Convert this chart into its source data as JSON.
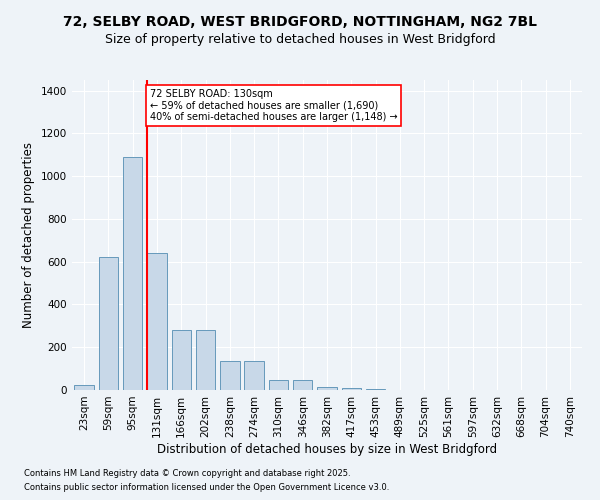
{
  "title_line1": "72, SELBY ROAD, WEST BRIDGFORD, NOTTINGHAM, NG2 7BL",
  "title_line2": "Size of property relative to detached houses in West Bridgford",
  "xlabel": "Distribution of detached houses by size in West Bridgford",
  "ylabel": "Number of detached properties",
  "bin_labels": [
    "23sqm",
    "59sqm",
    "95sqm",
    "131sqm",
    "166sqm",
    "202sqm",
    "238sqm",
    "274sqm",
    "310sqm",
    "346sqm",
    "382sqm",
    "417sqm",
    "453sqm",
    "489sqm",
    "525sqm",
    "561sqm",
    "597sqm",
    "632sqm",
    "668sqm",
    "704sqm",
    "740sqm"
  ],
  "bar_values": [
    25,
    620,
    1090,
    640,
    280,
    280,
    135,
    135,
    45,
    45,
    15,
    10,
    3,
    1,
    0,
    0,
    0,
    0,
    0,
    0,
    0
  ],
  "bar_color": "#c8d8e8",
  "bar_edgecolor": "#6699bb",
  "vline_x_index": 3,
  "vline_color": "red",
  "annotation_text": "72 SELBY ROAD: 130sqm\n← 59% of detached houses are smaller (1,690)\n40% of semi-detached houses are larger (1,148) →",
  "annotation_box_color": "white",
  "annotation_box_edgecolor": "red",
  "ylim": [
    0,
    1450
  ],
  "yticks": [
    0,
    200,
    400,
    600,
    800,
    1000,
    1200,
    1400
  ],
  "footnote1": "Contains HM Land Registry data © Crown copyright and database right 2025.",
  "footnote2": "Contains public sector information licensed under the Open Government Licence v3.0.",
  "background_color": "#eef3f8",
  "plot_background_color": "#eef3f8",
  "grid_color": "white",
  "title_fontsize": 10,
  "subtitle_fontsize": 9,
  "xlabel_fontsize": 8.5,
  "ylabel_fontsize": 8.5,
  "tick_fontsize": 7.5,
  "footnote_fontsize": 6,
  "annotation_fontsize": 7
}
